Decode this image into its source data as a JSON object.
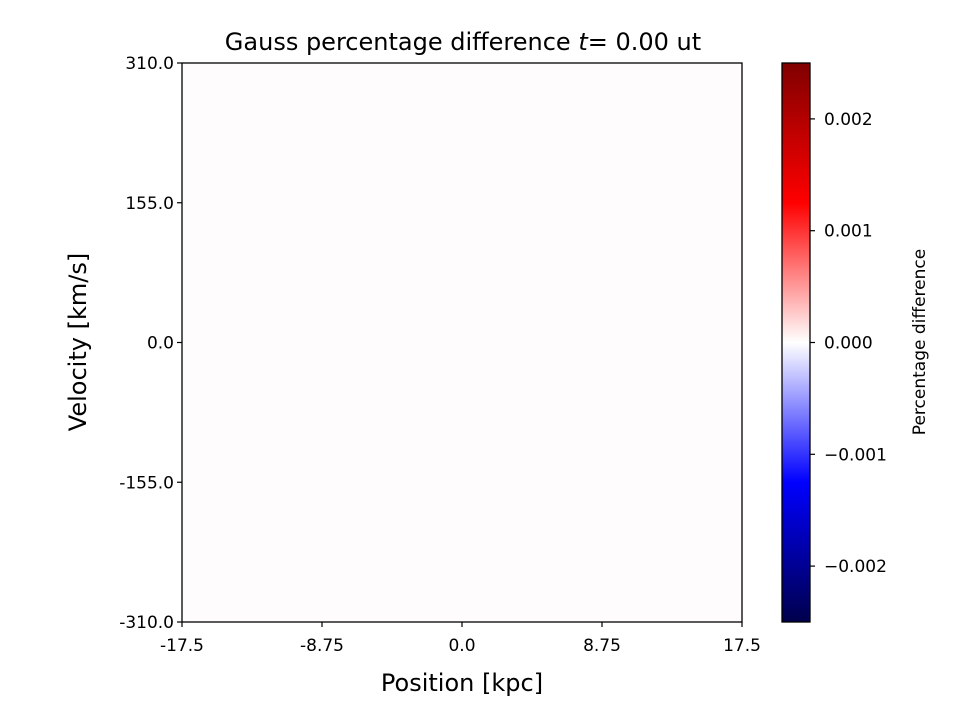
{
  "chart_data": {
    "type": "heatmap",
    "title_prefix": "Gauss percentage difference ",
    "title_var": "t",
    "title_eq": "=",
    "title_value": " 0.00 ut",
    "xlabel": "Position [kpc]",
    "ylabel": "Velocity [km/s]",
    "xlim": [
      -17.5,
      17.5
    ],
    "ylim": [
      -310.0,
      310.0
    ],
    "x_ticks": [
      -17.5,
      -8.75,
      0.0,
      8.75,
      17.5
    ],
    "x_tick_labels": [
      "-17.5",
      "-8.75",
      "0.0",
      "8.75",
      "17.5"
    ],
    "y_ticks": [
      -310.0,
      -155.0,
      0.0,
      155.0,
      310.0
    ],
    "y_tick_labels": [
      "-310.0",
      "-155.0",
      "0.0",
      "155.0",
      "310.0"
    ],
    "field_value": 0.0,
    "field_color": "#fffcfd",
    "colorbar": {
      "label": "Percentage difference",
      "colormap": "seismic",
      "range": [
        -0.0025,
        0.0025
      ],
      "ticks": [
        -0.002,
        -0.001,
        0.0,
        0.001,
        0.002
      ],
      "tick_labels": [
        "−0.002",
        "−0.001",
        "0.000",
        "0.001",
        "0.002"
      ]
    },
    "grid": false
  }
}
